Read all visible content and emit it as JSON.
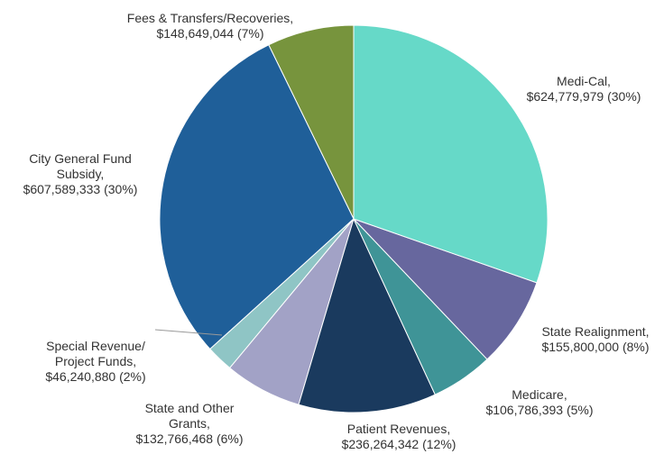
{
  "chart_data": {
    "type": "pie",
    "categories": [
      "Medi-Cal,",
      "State Realignment,",
      "Medicare,",
      "Patient Revenues,",
      "State and Other Grants,",
      "Special Revenue/ Project Funds,",
      "City General Fund Subsidy,",
      "Fees & Transfers/Recoveries,"
    ],
    "values": [
      624779979,
      155800000,
      106786393,
      236264342,
      132766468,
      46240880,
      607589333,
      148649044
    ],
    "value_labels": [
      "$624,779,979 (30%)",
      "$155,800,000 (8%)",
      "$106,786,393 (5%)",
      "$236,264,342 (12%)",
      "$132,766,468 (6%)",
      "$46,240,880 (2%)",
      "$607,589,333 (30%)",
      "$148,649,044 (7%)"
    ],
    "colors": [
      "#66d9c8",
      "#67679e",
      "#3f9497",
      "#1a3a5e",
      "#a2a2c6",
      "#8fc5c5",
      "#1f5f99",
      "#77943d"
    ]
  }
}
